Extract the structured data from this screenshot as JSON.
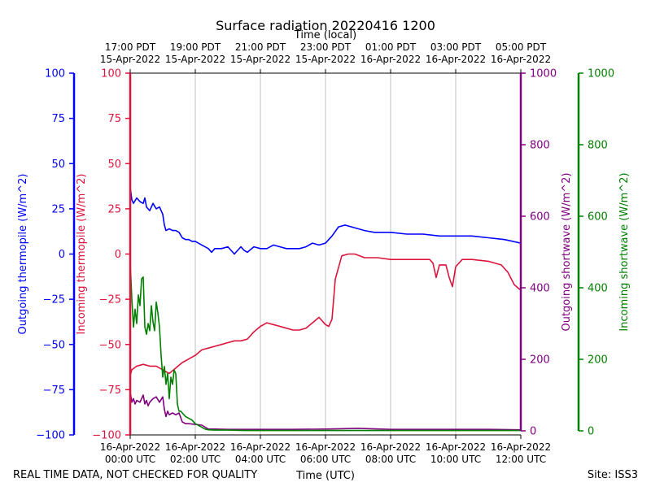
{
  "chart_data": {
    "type": "line",
    "title": "Surface radiation 20220416 1200",
    "top_axis_title": "Time (local)",
    "bottom_axis_title": "Time (UTC)",
    "footer_left": "REAL TIME DATA, NOT CHECKED FOR QUALITY",
    "footer_right": "Site: ISS3",
    "x_range_hours_utc": [
      0,
      12
    ],
    "x_ticks_bottom": [
      {
        "hour": 0,
        "line1": "16-Apr-2022",
        "line2": "00:00 UTC"
      },
      {
        "hour": 2,
        "line1": "16-Apr-2022",
        "line2": "02:00 UTC"
      },
      {
        "hour": 4,
        "line1": "16-Apr-2022",
        "line2": "04:00 UTC"
      },
      {
        "hour": 6,
        "line1": "16-Apr-2022",
        "line2": "06:00 UTC"
      },
      {
        "hour": 8,
        "line1": "16-Apr-2022",
        "line2": "08:00 UTC"
      },
      {
        "hour": 10,
        "line1": "16-Apr-2022",
        "line2": "10:00 UTC"
      },
      {
        "hour": 12,
        "line1": "16-Apr-2022",
        "line2": "12:00 UTC"
      }
    ],
    "x_ticks_top": [
      {
        "hour": 0,
        "line1": "17:00 PDT",
        "line2": "15-Apr-2022"
      },
      {
        "hour": 2,
        "line1": "19:00 PDT",
        "line2": "15-Apr-2022"
      },
      {
        "hour": 4,
        "line1": "21:00 PDT",
        "line2": "15-Apr-2022"
      },
      {
        "hour": 6,
        "line1": "23:00 PDT",
        "line2": "15-Apr-2022"
      },
      {
        "hour": 8,
        "line1": "01:00 PDT",
        "line2": "16-Apr-2022"
      },
      {
        "hour": 10,
        "line1": "03:00 PDT",
        "line2": "16-Apr-2022"
      },
      {
        "hour": 12,
        "line1": "05:00 PDT",
        "line2": "16-Apr-2022"
      }
    ],
    "grid": "vertical",
    "axes": {
      "outgoing_thermopile": {
        "label": "Outgoing thermopile (W/m^2)",
        "color": "#0000ff",
        "range": [
          -100,
          100
        ],
        "ticks": [
          "100",
          "75",
          "50",
          "25",
          "0",
          "−25",
          "−50",
          "−75",
          "−100"
        ],
        "tick_values": [
          100,
          75,
          50,
          25,
          0,
          -25,
          -50,
          -75,
          -100
        ],
        "side": "left-outer"
      },
      "incoming_thermopile": {
        "label": "Incoming thermopile (W/m^2)",
        "color": "#dc143c",
        "range": [
          -100,
          100
        ],
        "ticks": [
          "100",
          "75",
          "50",
          "25",
          "0",
          "−25",
          "−50",
          "−75",
          "−100"
        ],
        "tick_values": [
          100,
          75,
          50,
          25,
          0,
          -25,
          -50,
          -75,
          -100
        ],
        "side": "left-inner"
      },
      "outgoing_shortwave": {
        "label": "Outgoing shortwave (W/m^2)",
        "color": "#800080",
        "range": [
          0,
          1000
        ],
        "ticks": [
          "1000",
          "800",
          "600",
          "400",
          "200",
          "0"
        ],
        "tick_values": [
          1000,
          800,
          600,
          400,
          200,
          0
        ],
        "side": "right-inner"
      },
      "incoming_shortwave": {
        "label": "Incoming shortwave (W/m^2)",
        "color": "#008000",
        "range": [
          0,
          1000
        ],
        "ticks": [
          "1000",
          "800",
          "600",
          "400",
          "200",
          "0"
        ],
        "tick_values": [
          1000,
          800,
          600,
          400,
          200,
          0
        ],
        "side": "right-outer"
      }
    },
    "series": [
      {
        "axis": "outgoing_thermopile",
        "color": "#0000ff",
        "x": [
          0,
          0.05,
          0.1,
          0.2,
          0.3,
          0.4,
          0.45,
          0.5,
          0.6,
          0.7,
          0.8,
          0.9,
          1.0,
          1.05,
          1.1,
          1.2,
          1.3,
          1.4,
          1.5,
          1.6,
          1.7,
          1.8,
          1.9,
          2.0,
          2.2,
          2.4,
          2.5,
          2.6,
          2.8,
          3.0,
          3.2,
          3.4,
          3.5,
          3.6,
          3.8,
          4.0,
          4.2,
          4.4,
          4.6,
          4.8,
          5.0,
          5.2,
          5.4,
          5.6,
          5.8,
          6.0,
          6.2,
          6.4,
          6.6,
          6.8,
          7.0,
          7.2,
          7.5,
          8.0,
          8.5,
          9.0,
          9.5,
          10.0,
          10.5,
          11.0,
          11.5,
          12.0
        ],
        "y": [
          37,
          30,
          28,
          31,
          29,
          28,
          31,
          26,
          24,
          28,
          25,
          26,
          22,
          16,
          13,
          14,
          13,
          13,
          12,
          9,
          8,
          8,
          7,
          7,
          5,
          3,
          1,
          3,
          3,
          4,
          0,
          4,
          2,
          1,
          4,
          3,
          3,
          5,
          4,
          3,
          3,
          3,
          4,
          6,
          5,
          6,
          10,
          15,
          16,
          15,
          14,
          13,
          12,
          12,
          11,
          11,
          10,
          10,
          10,
          9,
          8,
          6
        ]
      },
      {
        "axis": "incoming_thermopile",
        "color": "#dc143c",
        "x": [
          0,
          0.05,
          0.2,
          0.4,
          0.6,
          0.8,
          1.0,
          1.2,
          1.4,
          1.6,
          1.8,
          2.0,
          2.2,
          2.4,
          2.6,
          2.8,
          3.0,
          3.2,
          3.4,
          3.6,
          3.8,
          4.0,
          4.2,
          4.4,
          4.6,
          4.8,
          5.0,
          5.2,
          5.4,
          5.6,
          5.8,
          6.0,
          6.1,
          6.2,
          6.3,
          6.5,
          6.7,
          6.9,
          7.2,
          7.6,
          8.0,
          8.4,
          8.8,
          9.0,
          9.2,
          9.3,
          9.4,
          9.5,
          9.6,
          9.7,
          9.8,
          9.9,
          10.0,
          10.2,
          10.5,
          11.0,
          11.2,
          11.4,
          11.6,
          11.8,
          12.0
        ],
        "y": [
          -67,
          -64,
          -62,
          -61,
          -62,
          -62,
          -64,
          -66,
          -63,
          -60,
          -58,
          -56,
          -53,
          -52,
          -51,
          -50,
          -49,
          -48,
          -48,
          -47,
          -43,
          -40,
          -38,
          -39,
          -40,
          -41,
          -42,
          -42,
          -41,
          -38,
          -35,
          -39,
          -40,
          -36,
          -14,
          -1,
          0,
          0,
          -2,
          -2,
          -3,
          -3,
          -3,
          -3,
          -3,
          -5,
          -13,
          -6,
          -6,
          -6,
          -13,
          -18,
          -7,
          -3,
          -3,
          -4,
          -5,
          -6,
          -10,
          -17,
          -20
        ]
      },
      {
        "axis": "outgoing_shortwave",
        "color": "#800080",
        "x": [
          0,
          0.05,
          0.1,
          0.15,
          0.2,
          0.3,
          0.4,
          0.45,
          0.5,
          0.55,
          0.6,
          0.7,
          0.8,
          0.9,
          1.0,
          1.05,
          1.1,
          1.15,
          1.2,
          1.3,
          1.4,
          1.5,
          1.6,
          1.7,
          1.8,
          2.0,
          2.2,
          2.4,
          2.6,
          3.0,
          3.5,
          4.0,
          5.0,
          6.0,
          7.0,
          8.0,
          9.0,
          10.0,
          11.0,
          12.0
        ],
        "y": [
          110,
          80,
          90,
          75,
          85,
          80,
          100,
          75,
          85,
          70,
          80,
          90,
          95,
          80,
          95,
          60,
          40,
          55,
          45,
          50,
          45,
          50,
          25,
          20,
          20,
          18,
          16,
          5,
          5,
          4,
          4,
          4,
          4,
          5,
          7,
          4,
          4,
          4,
          4,
          3
        ]
      },
      {
        "axis": "incoming_shortwave",
        "color": "#008000",
        "x": [
          0,
          0.05,
          0.1,
          0.15,
          0.2,
          0.25,
          0.3,
          0.35,
          0.4,
          0.45,
          0.5,
          0.55,
          0.6,
          0.65,
          0.7,
          0.75,
          0.8,
          0.85,
          0.9,
          0.95,
          1.0,
          1.05,
          1.1,
          1.15,
          1.2,
          1.25,
          1.3,
          1.35,
          1.4,
          1.45,
          1.5,
          1.55,
          1.6,
          1.65,
          1.7,
          1.8,
          1.9,
          2.0,
          2.1,
          2.2,
          2.3,
          2.4,
          2.6,
          2.8,
          3.0,
          3.5,
          4.0,
          4.5,
          5.0,
          6.0,
          7.0,
          8.0,
          9.0,
          10.0,
          11.0,
          12.0
        ],
        "y": [
          470,
          370,
          290,
          340,
          300,
          380,
          350,
          425,
          430,
          290,
          270,
          300,
          280,
          350,
          305,
          280,
          360,
          330,
          290,
          210,
          150,
          180,
          130,
          160,
          90,
          150,
          130,
          170,
          160,
          75,
          55,
          55,
          50,
          45,
          40,
          35,
          30,
          20,
          15,
          10,
          5,
          3,
          2,
          2,
          2,
          1,
          1,
          1,
          1,
          1,
          1,
          1,
          1,
          1,
          1,
          1
        ]
      }
    ]
  }
}
